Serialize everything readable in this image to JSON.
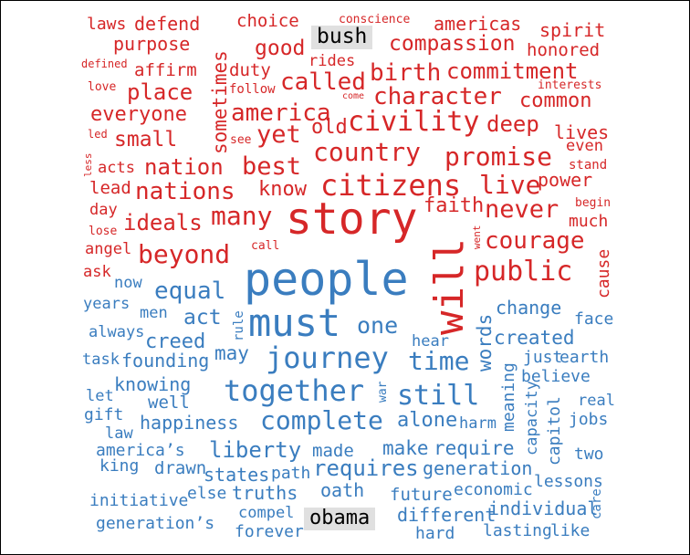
{
  "colors": {
    "red": "#d62728",
    "blue": "#3a7dbf",
    "highlight_bg": "#e0e0e0",
    "highlight_text": "#000000"
  },
  "words": {
    "laws": "laws",
    "defend": "defend",
    "choice": "choice",
    "conscience": "conscience",
    "americas": "americas",
    "spirit": "spirit",
    "purpose": "purpose",
    "good": "good",
    "bush": "bush",
    "compassion": "compassion",
    "honored": "honored",
    "defined": "defined",
    "affirm": "affirm",
    "duty": "duty",
    "rides": "rides",
    "birth": "birth",
    "commitment": "commitment",
    "love": "love",
    "place": "place",
    "follow": "follow",
    "called": "called",
    "interests": "interests",
    "come": "come",
    "character": "character",
    "common": "common",
    "everyone": "everyone",
    "america": "america",
    "civility": "civility",
    "deep": "deep",
    "led": "led",
    "small": "small",
    "see": "see",
    "yet": "yet",
    "old": "old",
    "lives": "lives",
    "sometimes": "sometimes",
    "less": "less",
    "country": "country",
    "promise": "promise",
    "even": "even",
    "acts": "acts",
    "nation": "nation",
    "best": "best",
    "stand": "stand",
    "power": "power",
    "lead": "lead",
    "nations": "nations",
    "know": "know",
    "citizens": "citizens",
    "live": "live",
    "begin": "begin",
    "day": "day",
    "faith": "faith",
    "never": "never",
    "much": "much",
    "ideals": "ideals",
    "many": "many",
    "story": "story",
    "lose": "lose",
    "went": "went",
    "angel": "angel",
    "beyond": "beyond",
    "call": "call",
    "courage": "courage",
    "cause": "cause",
    "ask": "ask",
    "will": "will",
    "public": "public",
    "people": "people",
    "now": "now",
    "equal": "equal",
    "years": "years",
    "change": "change",
    "rule": "rule",
    "men": "men",
    "act": "act",
    "must": "must",
    "one": "one",
    "words": "words",
    "face": "face",
    "always": "always",
    "creed": "creed",
    "created": "created",
    "hear": "hear",
    "may": "may",
    "task": "task",
    "founding": "founding",
    "journey": "journey",
    "time": "time",
    "just": "just",
    "earth": "earth",
    "believe": "believe",
    "knowing": "knowing",
    "war": "war",
    "meaning": "meaning",
    "let": "let",
    "together": "together",
    "still": "still",
    "real": "real",
    "well": "well",
    "gift": "gift",
    "happiness": "happiness",
    "complete": "complete",
    "alone": "alone",
    "harm": "harm",
    "capacity": "capacity",
    "jobs": "jobs",
    "law": "law",
    "capitol": "capitol",
    "americas_possessive": "america’s",
    "liberty": "liberty",
    "made": "made",
    "make": "make",
    "require": "require",
    "two": "two",
    "king": "king",
    "drawn": "drawn",
    "states": "states",
    "path": "path",
    "requires": "requires",
    "generation": "generation",
    "lessons": "lessons",
    "economic": "economic",
    "initiative": "initiative",
    "else": "else",
    "truths": "truths",
    "oath": "oath",
    "future": "future",
    "care": "care",
    "individual": "individual",
    "compel": "compel",
    "obama": "obama",
    "generations_possessive": "generation’s",
    "different": "different",
    "forever": "forever",
    "hard": "hard",
    "lasting": "lasting",
    "like": "like"
  }
}
